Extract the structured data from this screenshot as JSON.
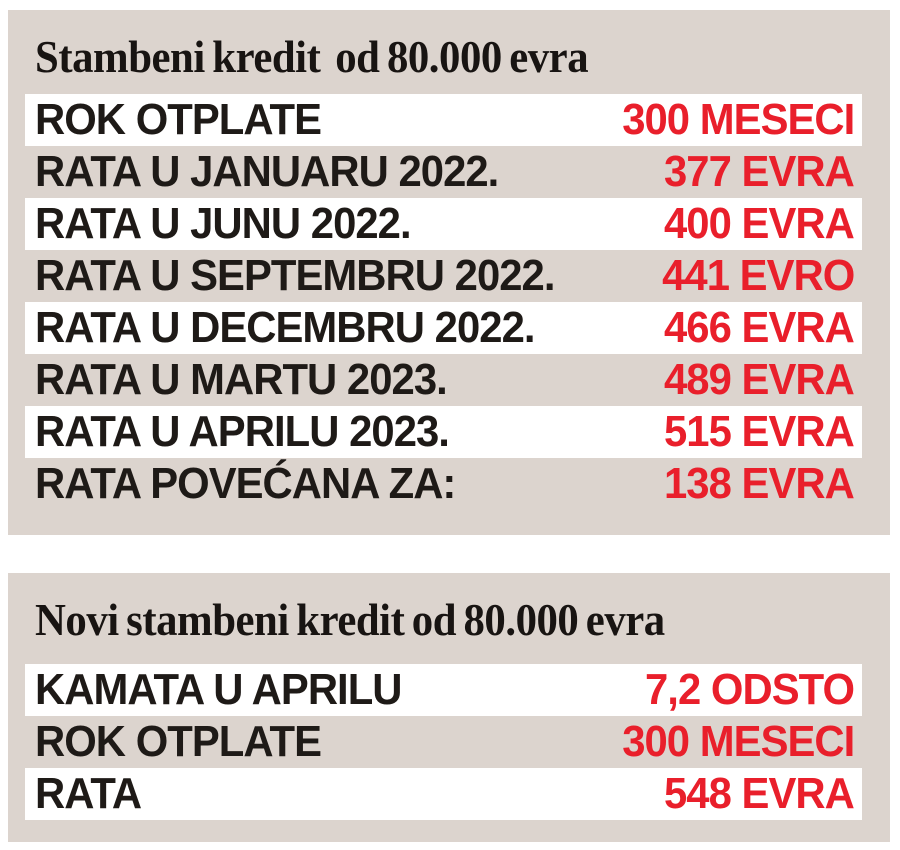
{
  "colors": {
    "page_background": "#ffffff",
    "panel_background": "#dcd4ce",
    "highlight_row_background": "#ffffff",
    "label_text": "#1e1a17",
    "value_text": "#e91f2b",
    "title_text": "#181412"
  },
  "chart_data": [
    {
      "type": "table",
      "title": "Stambeni kredit  od 80.000 evra",
      "columns": [
        "label",
        "value"
      ],
      "legend": "none",
      "rows": [
        {
          "label": "ROK OTPLATE",
          "value": "300 MESECI",
          "highlighted": true
        },
        {
          "label": "RATA U JANUARU 2022.",
          "value": "377 EVRA",
          "highlighted": false
        },
        {
          "label": "RATA U JUNU 2022.",
          "value": "400 EVRA",
          "highlighted": true
        },
        {
          "label": "RATA U SEPTEMBRU 2022.",
          "value": "441 EVRO",
          "highlighted": false
        },
        {
          "label": "RATA U DECEMBRU 2022.",
          "value": "466 EVRA",
          "highlighted": true
        },
        {
          "label": "RATA U MARTU 2023.",
          "value": "489 EVRA",
          "highlighted": false
        },
        {
          "label": "RATA U APRILU 2023.",
          "value": "515 EVRA",
          "highlighted": true
        },
        {
          "label": "RATA POVEĆANA ZA:",
          "value": "138 EVRA",
          "highlighted": false
        }
      ]
    },
    {
      "type": "table",
      "title": "Novi stambeni kredit od 80.000 evra",
      "columns": [
        "label",
        "value"
      ],
      "legend": "none",
      "rows": [
        {
          "label": "KAMATA U APRILU",
          "value": "7,2 ODSTO",
          "highlighted": true
        },
        {
          "label": "ROK OTPLATE",
          "value": "300 MESECI",
          "highlighted": false
        },
        {
          "label": "RATA",
          "value": "548 EVRA",
          "highlighted": true
        }
      ]
    }
  ]
}
